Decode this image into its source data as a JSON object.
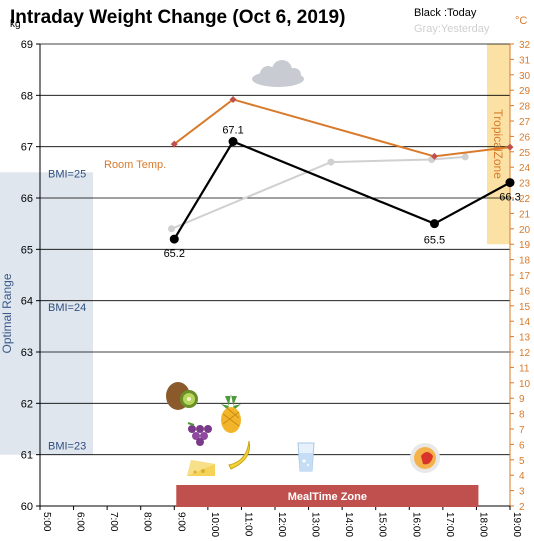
{
  "chart_data": {
    "type": "line",
    "title": "Intraday Weight Change (Oct 6, 2019)",
    "legend": [
      {
        "label": "Black :Today",
        "color": "#000000"
      },
      {
        "label": "Gray:Yesterday",
        "color": "#d0d0d0"
      }
    ],
    "legend_position": "top-right",
    "y_unit": "kg",
    "y2_unit": "°C",
    "x_tick_labels": [
      "5:00",
      "6:00",
      "7:00",
      "8:00",
      "9:00",
      "10:00",
      "11:00",
      "12:00",
      "13:00",
      "14:00",
      "15:00",
      "16:00",
      "17:00",
      "18:00",
      "19:00"
    ],
    "xlim": [
      "5:00",
      "19:00"
    ],
    "ylim": [
      60,
      69
    ],
    "y2lim": [
      2,
      32
    ],
    "y_ticks": [
      60,
      61,
      62,
      63,
      64,
      65,
      66,
      67,
      68,
      69
    ],
    "y2_ticks": [
      2,
      3,
      4,
      5,
      6,
      7,
      8,
      9,
      10,
      11,
      12,
      13,
      14,
      15,
      16,
      17,
      18,
      19,
      20,
      21,
      22,
      23,
      24,
      25,
      26,
      27,
      28,
      29,
      30,
      31,
      32
    ],
    "grid": true,
    "series": [
      {
        "name": "Today",
        "color": "#000000",
        "points": [
          {
            "x": "9:00",
            "y": 65.2,
            "label": "65.2"
          },
          {
            "x": "10:45",
            "y": 67.1,
            "label": "67.1"
          },
          {
            "x": "16:45",
            "y": 65.5,
            "label": "65.5"
          },
          {
            "x": "19:00",
            "y": 66.3,
            "label": "66.3"
          }
        ]
      },
      {
        "name": "Yesterday",
        "color": "#d0d0d0",
        "points": [
          {
            "x": "8:55",
            "y": 65.4
          },
          {
            "x": "13:40",
            "y": 66.7
          },
          {
            "x": "16:40",
            "y": 66.75
          },
          {
            "x": "17:40",
            "y": 66.8
          }
        ]
      },
      {
        "name": "Room Temp.",
        "axis": "right",
        "color": "#d97a2b",
        "points": [
          {
            "x": "9:00",
            "y": 25.5
          },
          {
            "x": "10:45",
            "y": 28.4
          },
          {
            "x": "16:45",
            "y": 24.7
          },
          {
            "x": "19:00",
            "y": 25.3
          }
        ]
      }
    ],
    "bands": {
      "optimal_range": {
        "label": "Optimal Range",
        "y_from": 61,
        "y_to": 66.5,
        "color": "#dfe6ee"
      },
      "tropical_zone": {
        "label": "TropicalZone",
        "axis": "right",
        "y_from": 19,
        "y_to": 32,
        "color": "#fbe2a4"
      },
      "meal_time_zone": {
        "label": "MealTime Zone",
        "x_from": "9:00",
        "x_to": "18:00",
        "color": "#c0504d"
      }
    },
    "bmi_labels": [
      {
        "label": "BMI=25",
        "y": 66.4
      },
      {
        "label": "BMI=24",
        "y": 63.8
      },
      {
        "label": "BMI=23",
        "y": 61.1
      }
    ],
    "annotations": {
      "room_temp_label": "Room Temp.",
      "icons": [
        "cloud-icon",
        "kiwi-icon",
        "pineapple-icon",
        "grapes-icon",
        "cheese-icon",
        "banana-icon",
        "water-glass-icon",
        "meal-plate-icon"
      ]
    }
  }
}
